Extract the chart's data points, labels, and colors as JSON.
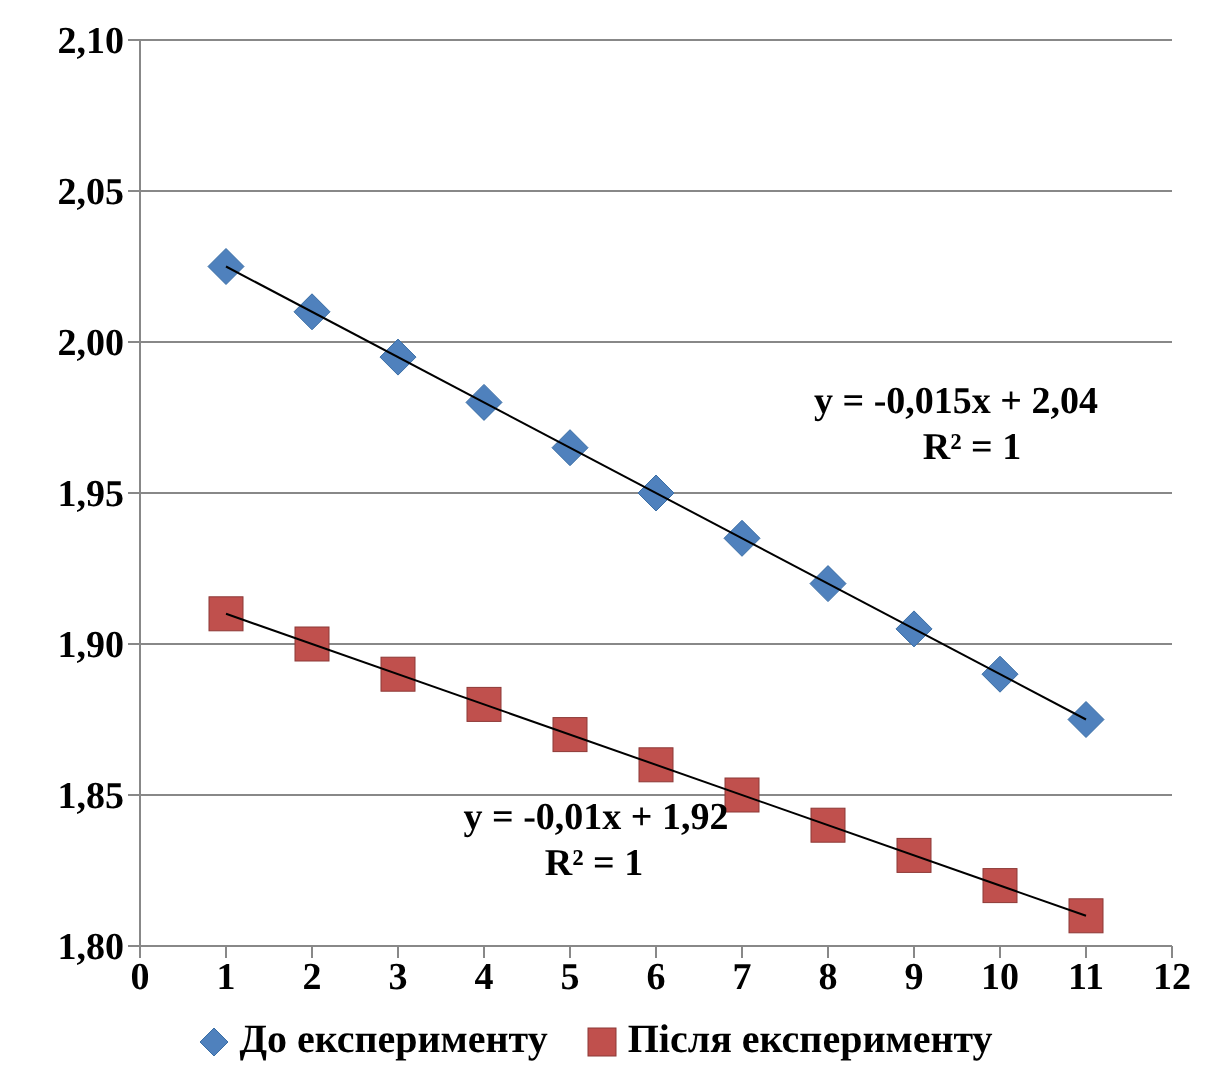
{
  "chart_data": {
    "type": "scatter",
    "series": [
      {
        "name": "До експерименту",
        "color": "#4f81bd",
        "marker": "diamond",
        "x": [
          1,
          2,
          3,
          4,
          5,
          6,
          7,
          8,
          9,
          10,
          11
        ],
        "values": [
          2.025,
          2.01,
          1.995,
          1.98,
          1.965,
          1.95,
          1.935,
          1.92,
          1.905,
          1.89,
          1.875
        ]
      },
      {
        "name": "Після експерименту",
        "color": "#c0504d",
        "marker": "square",
        "x": [
          1,
          2,
          3,
          4,
          5,
          6,
          7,
          8,
          9,
          10,
          11
        ],
        "values": [
          1.91,
          1.9,
          1.89,
          1.88,
          1.87,
          1.86,
          1.85,
          1.84,
          1.83,
          1.82,
          1.81
        ]
      },
      {
        "type": "line",
        "color": "#000000",
        "x": [
          1,
          11
        ],
        "values": [
          2.025,
          1.875
        ]
      },
      {
        "type": "line",
        "color": "#000000",
        "x": [
          1,
          11
        ],
        "values": [
          1.91,
          1.81
        ]
      }
    ],
    "xlim": [
      0,
      12
    ],
    "xticks": [
      0,
      1,
      2,
      3,
      4,
      5,
      6,
      7,
      8,
      9,
      10,
      11,
      12
    ],
    "ylim": [
      1.8,
      2.1
    ],
    "yticks": [
      {
        "value": 1.8,
        "label": "1,80"
      },
      {
        "value": 1.85,
        "label": "1,85"
      },
      {
        "value": 1.9,
        "label": "1,90"
      },
      {
        "value": 1.95,
        "label": "1,95"
      },
      {
        "value": 2.0,
        "label": "2,00"
      },
      {
        "value": 2.05,
        "label": "2,05"
      },
      {
        "value": 2.1,
        "label": "2,10"
      }
    ],
    "grid": "y",
    "legend": "bottom",
    "annotations": [
      "y = -0,015x + 2,04",
      "R² = 1",
      "y = -0,01x + 1,92",
      "R² = 1"
    ]
  }
}
